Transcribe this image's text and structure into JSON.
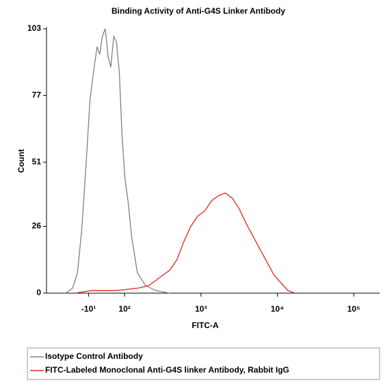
{
  "chart_data": {
    "type": "line",
    "title": "Binding Activity of Anti-G4S Linker Antibody",
    "x_label": "FITC-A",
    "y_label": "Count",
    "xlim": [
      -139,
      218000
    ],
    "ylim": [
      0,
      103
    ],
    "xticks": [
      {
        "value": -10,
        "label": "-10¹"
      },
      {
        "value": 100,
        "label": "10²"
      },
      {
        "value": 1000,
        "label": "10³"
      },
      {
        "value": 10000,
        "label": "10⁴"
      },
      {
        "value": 100000,
        "label": "10⁵"
      }
    ],
    "yticks": [
      0,
      26,
      51,
      77,
      103
    ],
    "legend": "bottom",
    "series": [
      {
        "name": "Isotype Control Antibody",
        "color": "#808080",
        "x": [
          -80,
          -59,
          -44,
          -31,
          -18,
          -6,
          7,
          16,
          24,
          32,
          41,
          50,
          58,
          67,
          75,
          84,
          92,
          101,
          112,
          124,
          147,
          188,
          258,
          392
        ],
        "values": [
          0,
          2,
          8,
          25,
          50,
          75,
          88,
          96,
          93,
          100,
          103,
          92,
          88,
          100,
          98,
          86,
          62,
          45,
          35,
          22,
          8,
          3,
          1,
          0
        ]
      },
      {
        "name": "FITC-Labeled Monoclonal Anti-G4S linker Antibody, Rabbit IgG",
        "color": "#e8231c",
        "x": [
          -52,
          -3,
          73,
          153,
          209,
          286,
          392,
          484,
          596,
          735,
          906,
          1117,
          1380,
          1700,
          2090,
          2570,
          3160,
          3930,
          4840,
          5960,
          7350,
          9060,
          11170,
          13800,
          17000
        ],
        "values": [
          0,
          1,
          1,
          2,
          3,
          6,
          9,
          13,
          20,
          26,
          30,
          32,
          36,
          38,
          39,
          37,
          33,
          27,
          22,
          17,
          12,
          7,
          4,
          1,
          0
        ]
      }
    ]
  }
}
